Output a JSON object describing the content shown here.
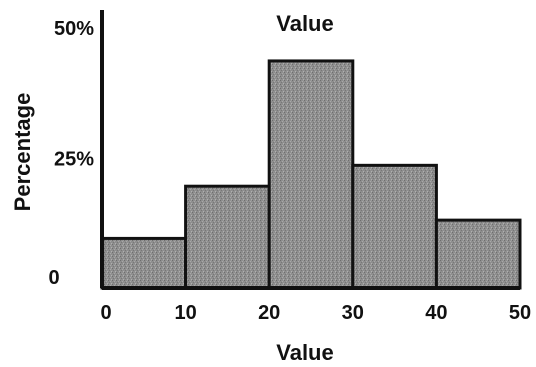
{
  "chart_data": {
    "type": "bar",
    "title": "Value",
    "xlabel": "Value",
    "ylabel": "Percentage",
    "bins": [
      {
        "from": 0,
        "to": 10,
        "value": 9.5
      },
      {
        "from": 10,
        "to": 20,
        "value": 19.5
      },
      {
        "from": 20,
        "to": 30,
        "value": 43.5
      },
      {
        "from": 30,
        "to": 40,
        "value": 23.5
      },
      {
        "from": 40,
        "to": 50,
        "value": 13
      }
    ],
    "xlim": [
      0,
      50
    ],
    "ylim": [
      0,
      50
    ],
    "x_ticks": [
      "0",
      "10",
      "20",
      "30",
      "40",
      "50"
    ],
    "y_ticks": [
      "0",
      "25%",
      "50%"
    ],
    "bar_fill": "#8e8e8e",
    "bar_edge": "#111111",
    "grid": false,
    "legend": "none"
  }
}
